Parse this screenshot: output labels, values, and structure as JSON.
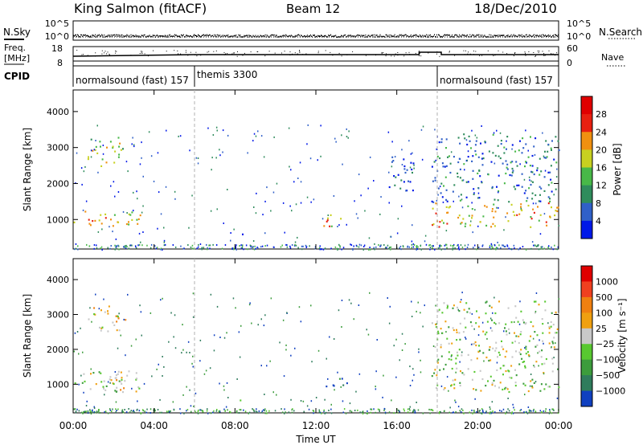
{
  "header": {
    "station": "King Salmon (fitACF)",
    "beam": "Beam 12",
    "date": "18/Dec/2010"
  },
  "summary_panels": {
    "nsky_label": "N.Sky",
    "freq_label_line1": "Freq.",
    "freq_label_line2": "[MHz]",
    "cpid_label": "CPID",
    "nsearch_label": "N.Search",
    "nave_label": "Nave",
    "nsky_ticks": [
      "10^5",
      "10^0"
    ],
    "nsearch_ticks": [
      "10^5",
      "10^0"
    ],
    "freq_ticks": [
      "18",
      "8"
    ],
    "nave_ticks": [
      "60",
      "0"
    ]
  },
  "cpid_segments": [
    {
      "label": "normalsound (fast) 157",
      "start_h": 0,
      "end_h": 6.0
    },
    {
      "label": "themis 3300",
      "start_h": 6.0,
      "end_h": 18.0
    },
    {
      "label": "normalsound (fast) 157",
      "start_h": 18.0,
      "end_h": 24.0
    }
  ],
  "chart_data": [
    {
      "type": "heatmap",
      "title": "Power",
      "ylabel": "Slant Range [km]",
      "xlabel": "Time UT",
      "xlim_hours": [
        0,
        24
      ],
      "ylim_km": [
        180,
        4600
      ],
      "yticks": [
        1000,
        2000,
        3000,
        4000
      ],
      "xtick_labels": [
        "00:00",
        "04:00",
        "08:00",
        "12:00",
        "16:00",
        "20:00",
        "00:00"
      ],
      "colorbar_label": "Power [dB]",
      "colorbar_ticks": [
        "4",
        "8",
        "12",
        "16",
        "20",
        "24",
        "28"
      ],
      "colorbar_colors": [
        "#0018e8",
        "#3060c8",
        "#2f8c5c",
        "#48b848",
        "#c8d020",
        "#f09010",
        "#e82010",
        "#e00000"
      ],
      "scatter_regions": [
        {
          "t0": 0.0,
          "t1": 3.3,
          "r0": 800,
          "r1": 1300,
          "level": 5
        },
        {
          "t0": 0.7,
          "t1": 2.6,
          "r0": 2500,
          "r1": 3300,
          "level": 4
        },
        {
          "t0": 12.2,
          "t1": 13.6,
          "r0": 800,
          "r1": 1150,
          "level": 5
        },
        {
          "t0": 15.3,
          "t1": 16.8,
          "r0": 1800,
          "r1": 2800,
          "level": 1
        },
        {
          "t0": 17.7,
          "t1": 24.0,
          "r0": 800,
          "r1": 1500,
          "level": 5
        },
        {
          "t0": 17.7,
          "t1": 24.0,
          "r0": 1500,
          "r1": 3400,
          "level": 2
        },
        {
          "t0": 8.2,
          "t1": 8.7,
          "r0": 500,
          "r1": 650,
          "level": 1
        }
      ]
    },
    {
      "type": "heatmap",
      "title": "Velocity",
      "ylabel": "Slant Range [km]",
      "xlabel": "Time UT",
      "xlim_hours": [
        0,
        24
      ],
      "ylim_km": [
        180,
        4600
      ],
      "yticks": [
        1000,
        2000,
        3000,
        4000
      ],
      "xtick_labels": [
        "00:00",
        "04:00",
        "08:00",
        "12:00",
        "16:00",
        "20:00",
        "00:00"
      ],
      "colorbar_label": "Velocity [m s⁻¹]",
      "colorbar_ticks": [
        "1000",
        "500",
        "100",
        "25",
        "−25",
        "−100",
        "−500",
        "−1000"
      ],
      "colorbar_colors": [
        "#1040c0",
        "#2f7c5c",
        "#3c9c3c",
        "#58c830",
        "#c8c8c8",
        "#f0a010",
        "#f08010",
        "#f04020",
        "#e00000"
      ],
      "scatter_regions": [
        {
          "t0": 0.0,
          "t1": 3.3,
          "r0": 800,
          "r1": 1400,
          "level": 4
        },
        {
          "t0": 1.7,
          "t1": 3.3,
          "r0": 800,
          "r1": 1400,
          "level": 5
        },
        {
          "t0": 0.7,
          "t1": 2.6,
          "r0": 2500,
          "r1": 3300,
          "level": 5
        },
        {
          "t0": 12.2,
          "t1": 13.6,
          "r0": 900,
          "r1": 1200,
          "level": 1
        },
        {
          "t0": 17.7,
          "t1": 24.0,
          "r0": 800,
          "r1": 1500,
          "level": 4
        },
        {
          "t0": 17.7,
          "t1": 24.0,
          "r0": 1500,
          "r1": 3400,
          "level": 4
        },
        {
          "t0": 8.2,
          "t1": 8.7,
          "r0": 500,
          "r1": 650,
          "level": 5
        }
      ]
    }
  ],
  "colors": {
    "axis": "#000000",
    "background": "#ffffff",
    "dashed_divider": "#b0b0b0"
  }
}
